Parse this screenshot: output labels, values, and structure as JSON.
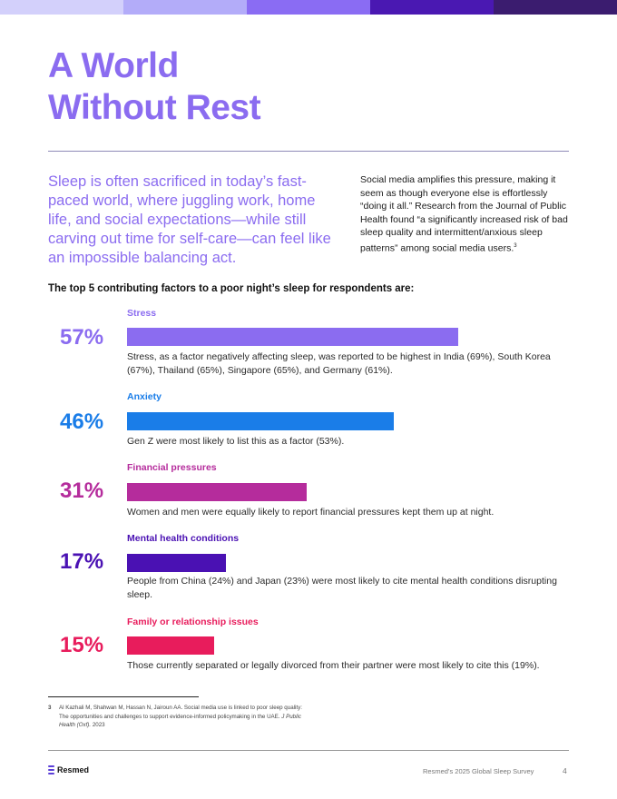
{
  "colors": {
    "topbar": [
      "#d3d0fb",
      "#b3acf9",
      "#8a6cf3",
      "#4a18b2",
      "#3b1c6f"
    ],
    "title": "#8b6cf0",
    "stress": "#8b6cf0",
    "anxiety": "#1a7de8",
    "financial": "#b52c9c",
    "mental": "#4a11b3",
    "family": "#e81c5c"
  },
  "header": {
    "title_line1": "A World",
    "title_line2": "Without Rest"
  },
  "intro": {
    "lead": "Sleep is often sacrificed in today’s fast-paced world, where juggling work, home life, and social expectations—while still carving out time for self-care—can feel like an impossible balancing act.",
    "side_text": "Social media amplifies this pressure, making it seem as though everyone else is effortlessly “doing it all.” Research from the Journal of Public Health found “a significantly increased risk of bad sleep quality and intermittent/anxious sleep patterns” among social media users.",
    "side_ref": "3"
  },
  "section": {
    "heading": "The top 5 contributing factors to a poor night’s sleep for respondents are:"
  },
  "factors": [
    {
      "label": "Stress",
      "percent_text": "57%",
      "value": 57,
      "description": "Stress, as a factor negatively affecting sleep, was reported to be highest in India (69%), South Korea (67%), Thailand (65%), Singapore (65%), and Germany (61%)."
    },
    {
      "label": "Anxiety",
      "percent_text": "46%",
      "value": 46,
      "description": "Gen Z were most likely to list this as a factor (53%)."
    },
    {
      "label": "Financial pressures",
      "percent_text": "31%",
      "value": 31,
      "description": "Women and men were equally likely to report financial pressures kept them up at night."
    },
    {
      "label": "Mental health conditions",
      "percent_text": "17%",
      "value": 17,
      "description": "People from China (24%) and Japan (23%) were most likely to cite mental health conditions disrupting sleep."
    },
    {
      "label": "Family or relationship issues",
      "percent_text": "15%",
      "value": 15,
      "description": "Those currently separated or legally divorced from their partner were most likely to cite this (19%)."
    }
  ],
  "footnote": {
    "number": "3",
    "text": "Al Kazhali M, Shahwan M, Hassan N, Jairoun AA. Social media use is linked to poor sleep quality: The opportunities and challenges to support evidence-informed policymaking in the UAE.",
    "journal": "J Public Health (Oxf).",
    "year": "2023"
  },
  "footer": {
    "logo_text": "Resmed",
    "survey_title": "Resmed’s 2025 Global Sleep Survey",
    "page_number": "4"
  }
}
